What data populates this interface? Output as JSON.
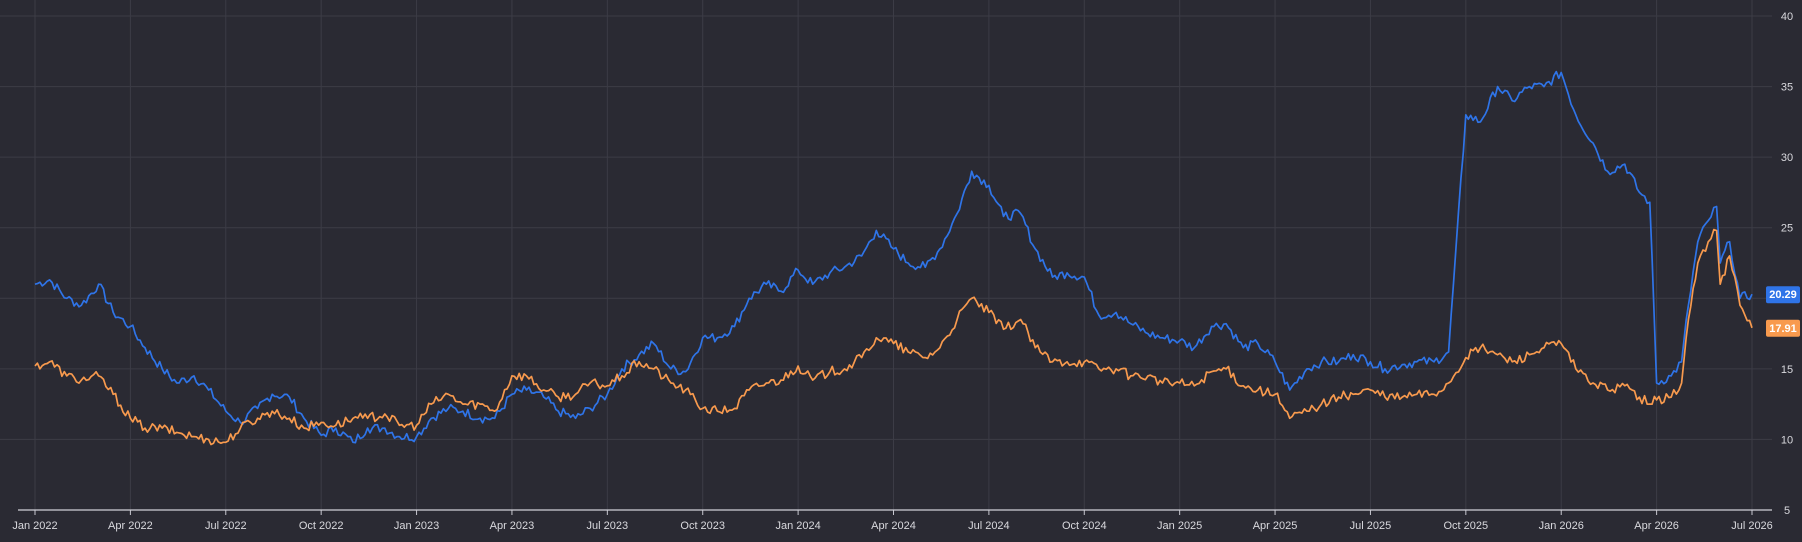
{
  "chart_data": {
    "type": "line",
    "xlim": [
      "2022-01-01",
      "2026-07-01"
    ],
    "ylim": [
      5,
      40
    ],
    "x_ticks": [
      "Jan 2022",
      "Apr 2022",
      "Jul 2022",
      "Oct 2022",
      "Jan 2023",
      "Apr 2023",
      "Jul 2023",
      "Oct 2023",
      "Jan 2024",
      "Apr 2024",
      "Jul 2024",
      "Oct 2024",
      "Jan 2025",
      "Apr 2025",
      "Jul 2025",
      "Oct 2025",
      "Jan 2026",
      "Apr 2026",
      "Jul 2026"
    ],
    "y_ticks": [
      5,
      10,
      15,
      20,
      25,
      30,
      35,
      40
    ],
    "grid": true,
    "series": [
      {
        "color": "#2f74e8",
        "last_value_label": "20.29",
        "points": [
          [
            "2022-01-01",
            21.0
          ],
          [
            "2022-01-15",
            21.3
          ],
          [
            "2022-02-01",
            20.0
          ],
          [
            "2022-02-15",
            19.5
          ],
          [
            "2022-03-01",
            21.0
          ],
          [
            "2022-03-15",
            19.0
          ],
          [
            "2022-04-01",
            18.0
          ],
          [
            "2022-04-15",
            16.5
          ],
          [
            "2022-05-01",
            15.0
          ],
          [
            "2022-05-15",
            14.0
          ],
          [
            "2022-06-01",
            14.5
          ],
          [
            "2022-06-15",
            13.5
          ],
          [
            "2022-07-01",
            12.0
          ],
          [
            "2022-07-15",
            11.2
          ],
          [
            "2022-08-01",
            12.2
          ],
          [
            "2022-08-15",
            13.2
          ],
          [
            "2022-09-01",
            13.0
          ],
          [
            "2022-09-15",
            11.5
          ],
          [
            "2022-10-01",
            10.3
          ],
          [
            "2022-10-15",
            10.8
          ],
          [
            "2022-11-01",
            9.8
          ],
          [
            "2022-11-15",
            10.8
          ],
          [
            "2022-12-01",
            10.8
          ],
          [
            "2022-12-15",
            10.2
          ],
          [
            "2023-01-01",
            10.2
          ],
          [
            "2023-01-15",
            11.5
          ],
          [
            "2023-02-01",
            12.2
          ],
          [
            "2023-02-15",
            12.0
          ],
          [
            "2023-03-01",
            11.5
          ],
          [
            "2023-03-15",
            11.5
          ],
          [
            "2023-04-01",
            13.2
          ],
          [
            "2023-04-15",
            13.5
          ],
          [
            "2023-05-01",
            13.0
          ],
          [
            "2023-05-15",
            12.0
          ],
          [
            "2023-06-01",
            11.5
          ],
          [
            "2023-06-15",
            12.2
          ],
          [
            "2023-07-01",
            13.2
          ],
          [
            "2023-07-15",
            15.0
          ],
          [
            "2023-08-01",
            16.0
          ],
          [
            "2023-08-15",
            16.8
          ],
          [
            "2023-09-01",
            15.0
          ],
          [
            "2023-09-15",
            14.8
          ],
          [
            "2023-10-01",
            17.2
          ],
          [
            "2023-10-15",
            17.2
          ],
          [
            "2023-11-01",
            18.0
          ],
          [
            "2023-11-15",
            20.0
          ],
          [
            "2023-12-01",
            21.0
          ],
          [
            "2023-12-15",
            20.5
          ],
          [
            "2024-01-01",
            22.0
          ],
          [
            "2024-01-15",
            21.0
          ],
          [
            "2024-02-01",
            21.8
          ],
          [
            "2024-02-15",
            22.2
          ],
          [
            "2024-03-01",
            23.0
          ],
          [
            "2024-03-15",
            24.8
          ],
          [
            "2024-04-01",
            23.5
          ],
          [
            "2024-04-15",
            22.5
          ],
          [
            "2024-05-01",
            22.2
          ],
          [
            "2024-05-15",
            23.5
          ],
          [
            "2024-06-01",
            26.0
          ],
          [
            "2024-06-15",
            29.0
          ],
          [
            "2024-07-01",
            28.0
          ],
          [
            "2024-07-15",
            25.8
          ],
          [
            "2024-08-01",
            26.0
          ],
          [
            "2024-08-15",
            23.5
          ],
          [
            "2024-09-01",
            21.5
          ],
          [
            "2024-09-15",
            21.8
          ],
          [
            "2024-10-01",
            21.5
          ],
          [
            "2024-10-15",
            18.8
          ],
          [
            "2024-11-01",
            19.0
          ],
          [
            "2024-11-15",
            18.2
          ],
          [
            "2024-12-01",
            17.5
          ],
          [
            "2024-12-15",
            17.2
          ],
          [
            "2025-01-01",
            17.0
          ],
          [
            "2025-01-15",
            16.5
          ],
          [
            "2025-02-01",
            18.0
          ],
          [
            "2025-02-15",
            18.2
          ],
          [
            "2025-03-01",
            16.5
          ],
          [
            "2025-03-15",
            16.8
          ],
          [
            "2025-04-01",
            15.5
          ],
          [
            "2025-04-15",
            13.5
          ],
          [
            "2025-05-01",
            15.0
          ],
          [
            "2025-05-15",
            15.5
          ],
          [
            "2025-06-01",
            15.5
          ],
          [
            "2025-06-15",
            16.0
          ],
          [
            "2025-07-01",
            15.5
          ],
          [
            "2025-07-15",
            15.0
          ],
          [
            "2025-08-01",
            15.3
          ],
          [
            "2025-08-15",
            15.5
          ],
          [
            "2025-09-01",
            15.5
          ],
          [
            "2025-09-15",
            16.2
          ],
          [
            "2025-10-01",
            33.0
          ],
          [
            "2025-10-15",
            32.5
          ],
          [
            "2025-11-01",
            35.0
          ],
          [
            "2025-11-15",
            34.0
          ],
          [
            "2025-12-01",
            35.0
          ],
          [
            "2025-12-15",
            35.0
          ],
          [
            "2026-01-01",
            36.0
          ],
          [
            "2026-01-15",
            33.0
          ],
          [
            "2026-02-01",
            31.0
          ],
          [
            "2026-02-15",
            29.0
          ],
          [
            "2026-03-01",
            29.5
          ],
          [
            "2026-03-15",
            27.5
          ],
          [
            "2026-03-25",
            26.8
          ],
          [
            "2026-04-01",
            14.0
          ],
          [
            "2026-04-15",
            14.5
          ],
          [
            "2026-04-25",
            15.5
          ],
          [
            "2026-05-01",
            19.5
          ],
          [
            "2026-05-10",
            24.0
          ],
          [
            "2026-05-20",
            25.5
          ],
          [
            "2026-05-28",
            26.5
          ],
          [
            "2026-06-01",
            22.5
          ],
          [
            "2026-06-10",
            24.0
          ],
          [
            "2026-06-20",
            20.0
          ],
          [
            "2026-07-01",
            20.29
          ]
        ]
      },
      {
        "color": "#f89a4e",
        "last_value_label": "17.91",
        "points": [
          [
            "2022-01-01",
            15.2
          ],
          [
            "2022-01-15",
            15.5
          ],
          [
            "2022-02-01",
            14.5
          ],
          [
            "2022-02-15",
            14.2
          ],
          [
            "2022-03-01",
            14.5
          ],
          [
            "2022-03-15",
            13.2
          ],
          [
            "2022-04-01",
            11.5
          ],
          [
            "2022-04-15",
            10.8
          ],
          [
            "2022-05-01",
            10.8
          ],
          [
            "2022-05-15",
            10.5
          ],
          [
            "2022-06-01",
            10.2
          ],
          [
            "2022-06-15",
            10.0
          ],
          [
            "2022-07-01",
            9.8
          ],
          [
            "2022-07-15",
            10.8
          ],
          [
            "2022-08-01",
            11.5
          ],
          [
            "2022-08-15",
            12.0
          ],
          [
            "2022-09-01",
            11.5
          ],
          [
            "2022-09-15",
            10.8
          ],
          [
            "2022-10-01",
            11.2
          ],
          [
            "2022-10-15",
            11.0
          ],
          [
            "2022-11-01",
            11.5
          ],
          [
            "2022-11-15",
            11.5
          ],
          [
            "2022-12-01",
            11.8
          ],
          [
            "2022-12-15",
            11.0
          ],
          [
            "2023-01-01",
            11.0
          ],
          [
            "2023-01-15",
            12.5
          ],
          [
            "2023-02-01",
            13.2
          ],
          [
            "2023-02-15",
            12.5
          ],
          [
            "2023-03-01",
            12.5
          ],
          [
            "2023-03-15",
            12.0
          ],
          [
            "2023-04-01",
            14.5
          ],
          [
            "2023-04-15",
            14.5
          ],
          [
            "2023-05-01",
            13.5
          ],
          [
            "2023-05-15",
            13.0
          ],
          [
            "2023-06-01",
            13.2
          ],
          [
            "2023-06-15",
            14.0
          ],
          [
            "2023-07-01",
            13.8
          ],
          [
            "2023-07-15",
            14.5
          ],
          [
            "2023-08-01",
            15.5
          ],
          [
            "2023-08-15",
            15.0
          ],
          [
            "2023-09-01",
            14.0
          ],
          [
            "2023-09-15",
            13.5
          ],
          [
            "2023-10-01",
            12.2
          ],
          [
            "2023-10-15",
            12.0
          ],
          [
            "2023-11-01",
            12.2
          ],
          [
            "2023-11-15",
            13.5
          ],
          [
            "2023-12-01",
            14.0
          ],
          [
            "2023-12-15",
            14.2
          ],
          [
            "2024-01-01",
            15.2
          ],
          [
            "2024-01-15",
            14.2
          ],
          [
            "2024-02-01",
            14.8
          ],
          [
            "2024-02-15",
            15.0
          ],
          [
            "2024-03-01",
            15.8
          ],
          [
            "2024-03-15",
            17.2
          ],
          [
            "2024-04-01",
            16.8
          ],
          [
            "2024-04-15",
            16.2
          ],
          [
            "2024-05-01",
            15.8
          ],
          [
            "2024-05-15",
            16.5
          ],
          [
            "2024-06-01",
            18.5
          ],
          [
            "2024-06-15",
            20.0
          ],
          [
            "2024-07-01",
            19.0
          ],
          [
            "2024-07-15",
            17.8
          ],
          [
            "2024-08-01",
            18.5
          ],
          [
            "2024-08-15",
            16.5
          ],
          [
            "2024-09-01",
            15.5
          ],
          [
            "2024-09-15",
            15.5
          ],
          [
            "2024-10-01",
            15.5
          ],
          [
            "2024-10-15",
            15.0
          ],
          [
            "2024-11-01",
            15.0
          ],
          [
            "2024-11-15",
            14.5
          ],
          [
            "2024-12-01",
            14.5
          ],
          [
            "2024-12-15",
            14.0
          ],
          [
            "2025-01-01",
            14.0
          ],
          [
            "2025-01-15",
            13.8
          ],
          [
            "2025-02-01",
            14.8
          ],
          [
            "2025-02-15",
            15.0
          ],
          [
            "2025-03-01",
            13.8
          ],
          [
            "2025-03-15",
            13.5
          ],
          [
            "2025-04-01",
            13.2
          ],
          [
            "2025-04-15",
            11.5
          ],
          [
            "2025-05-01",
            12.0
          ],
          [
            "2025-05-15",
            12.5
          ],
          [
            "2025-06-01",
            13.0
          ],
          [
            "2025-06-15",
            13.2
          ],
          [
            "2025-07-01",
            13.5
          ],
          [
            "2025-07-15",
            13.0
          ],
          [
            "2025-08-01",
            13.0
          ],
          [
            "2025-08-15",
            13.2
          ],
          [
            "2025-09-01",
            13.2
          ],
          [
            "2025-09-15",
            14.0
          ],
          [
            "2025-10-01",
            15.8
          ],
          [
            "2025-10-15",
            16.5
          ],
          [
            "2025-11-01",
            16.0
          ],
          [
            "2025-11-15",
            15.5
          ],
          [
            "2025-12-01",
            16.0
          ],
          [
            "2025-12-15",
            16.5
          ],
          [
            "2026-01-01",
            16.8
          ],
          [
            "2026-01-15",
            15.0
          ],
          [
            "2026-02-01",
            14.0
          ],
          [
            "2026-02-15",
            13.5
          ],
          [
            "2026-03-01",
            13.8
          ],
          [
            "2026-03-15",
            13.0
          ],
          [
            "2026-03-25",
            12.5
          ],
          [
            "2026-04-01",
            12.8
          ],
          [
            "2026-04-15",
            13.0
          ],
          [
            "2026-04-25",
            14.0
          ],
          [
            "2026-05-01",
            18.5
          ],
          [
            "2026-05-10",
            22.5
          ],
          [
            "2026-05-20",
            24.0
          ],
          [
            "2026-05-28",
            24.8
          ],
          [
            "2026-06-01",
            21.0
          ],
          [
            "2026-06-10",
            23.0
          ],
          [
            "2026-06-20",
            19.5
          ],
          [
            "2026-07-01",
            17.91
          ]
        ]
      }
    ]
  }
}
